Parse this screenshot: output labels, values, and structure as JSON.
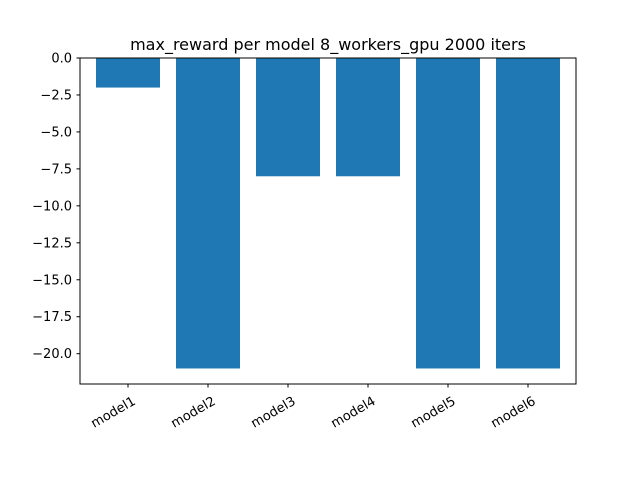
{
  "chart_data": {
    "type": "bar",
    "title": "max_reward per model 8_workers_gpu 2000 iters",
    "xlabel": "",
    "ylabel": "",
    "categories": [
      "model1",
      "model2",
      "model3",
      "model4",
      "model5",
      "model6"
    ],
    "values": [
      -2.0,
      -21.0,
      -8.0,
      -8.0,
      -21.0,
      -21.0
    ],
    "ylim": [
      -22.05,
      0.0
    ],
    "yticks": [
      0.0,
      -2.5,
      -5.0,
      -7.5,
      -10.0,
      -12.5,
      -15.0,
      -17.5,
      -20.0
    ],
    "ytick_labels": [
      "0.0",
      "−2.5",
      "−5.0",
      "−7.5",
      "−10.0",
      "−12.5",
      "−15.0",
      "−17.5",
      "−20.0"
    ],
    "bar_color": "#1f77b4",
    "grid": false,
    "legend": null,
    "xtick_rotation_deg": 30
  }
}
